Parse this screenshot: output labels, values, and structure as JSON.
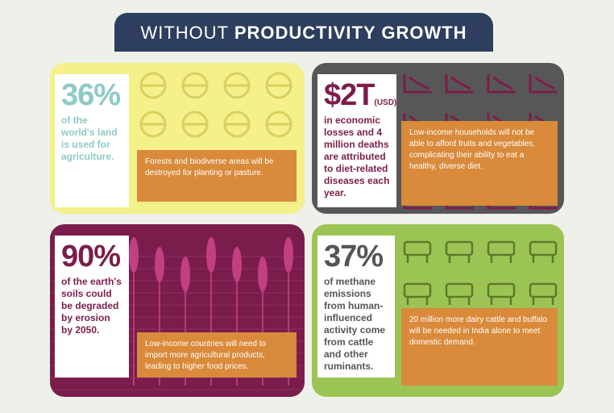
{
  "header": {
    "title_light": "WITHOUT",
    "title_bold": "PRODUCTIVITY GROWTH"
  },
  "panels": [
    {
      "stat": "36%",
      "description": "of the world's land is used for agriculture.",
      "callout": "Forests and biodiverse areas will be destroyed for planting or pasture."
    },
    {
      "stat": "$2T",
      "stat_unit": "(USD)",
      "description": "in economic losses and 4 million deaths are attributed to diet-related diseases each year.",
      "callout": "Low-income households will not be able to afford fruits and vegetables, complicating their ability to eat a healthy, diverse diet."
    },
    {
      "stat": "90%",
      "description": "of the earth's soils could be degraded by erosion by 2050.",
      "callout": "Low-income countries will need to import more agricultural products, leading to higher food prices."
    },
    {
      "stat": "37%",
      "description": "of methane emissions from human-influenced activity come from cattle and other ruminants.",
      "callout": "20 million more dairy cattle and buffalo will be needed in India alone to meet domestic demand."
    }
  ]
}
